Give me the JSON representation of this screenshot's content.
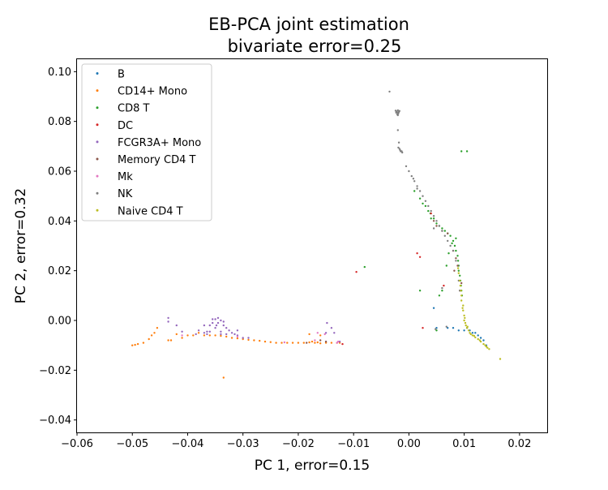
{
  "chart_data": {
    "type": "scatter",
    "title": "EB-PCA joint estimation",
    "subtitle": "bivariate error=0.25",
    "xlabel": "PC 1, error=0.15",
    "ylabel": "PC 2, error=0.32",
    "xlim": [
      -0.06,
      0.025
    ],
    "ylim": [
      -0.045,
      0.105
    ],
    "x_ticks": [
      -0.06,
      -0.05,
      -0.04,
      -0.03,
      -0.02,
      -0.01,
      0.0,
      0.01,
      0.02
    ],
    "x_tick_labels": [
      "−0.06",
      "−0.05",
      "−0.04",
      "−0.03",
      "−0.02",
      "−0.01",
      "0.00",
      "0.01",
      "0.02"
    ],
    "y_ticks": [
      -0.04,
      -0.02,
      0.0,
      0.02,
      0.04,
      0.06,
      0.08,
      0.1
    ],
    "y_tick_labels": [
      "−0.04",
      "−0.02",
      "0.00",
      "0.02",
      "0.04",
      "0.06",
      "0.08",
      "0.10"
    ],
    "grid": false,
    "legend_position": "upper-left",
    "series": [
      {
        "name": "B",
        "color": "#1f77b4",
        "points": [
          [
            0.005,
            -0.003
          ],
          [
            0.007,
            -0.003
          ],
          [
            0.008,
            -0.003
          ],
          [
            0.009,
            -0.004
          ],
          [
            0.01,
            -0.004
          ],
          [
            0.011,
            -0.004
          ],
          [
            0.0115,
            -0.005
          ],
          [
            0.012,
            -0.005
          ],
          [
            0.0125,
            -0.006
          ],
          [
            0.013,
            -0.007
          ],
          [
            0.0135,
            -0.008
          ],
          [
            0.014,
            -0.01
          ],
          [
            0.0045,
            0.005
          ],
          [
            0.0105,
            -0.003
          ]
        ]
      },
      {
        "name": "CD14+ Mono",
        "color": "#ff7f0e",
        "points": [
          [
            -0.05,
            -0.01
          ],
          [
            -0.0495,
            -0.0098
          ],
          [
            -0.049,
            -0.0095
          ],
          [
            -0.048,
            -0.009
          ],
          [
            -0.047,
            -0.0075
          ],
          [
            -0.0465,
            -0.006
          ],
          [
            -0.046,
            -0.005
          ],
          [
            -0.0455,
            -0.003
          ],
          [
            -0.0435,
            -0.008
          ],
          [
            -0.043,
            -0.008
          ],
          [
            -0.042,
            -0.0055
          ],
          [
            -0.041,
            -0.007
          ],
          [
            -0.04,
            -0.006
          ],
          [
            -0.039,
            -0.006
          ],
          [
            -0.038,
            -0.005
          ],
          [
            -0.037,
            -0.006
          ],
          [
            -0.036,
            -0.006
          ],
          [
            -0.035,
            -0.006
          ],
          [
            -0.034,
            -0.0062
          ],
          [
            -0.033,
            -0.0065
          ],
          [
            -0.032,
            -0.007
          ],
          [
            -0.031,
            -0.0072
          ],
          [
            -0.03,
            -0.0075
          ],
          [
            -0.029,
            -0.0078
          ],
          [
            -0.028,
            -0.008
          ],
          [
            -0.027,
            -0.0082
          ],
          [
            -0.026,
            -0.0085
          ],
          [
            -0.025,
            -0.0087
          ],
          [
            -0.024,
            -0.009
          ],
          [
            -0.023,
            -0.009
          ],
          [
            -0.022,
            -0.009
          ],
          [
            -0.021,
            -0.009
          ],
          [
            -0.02,
            -0.009
          ],
          [
            -0.019,
            -0.009
          ],
          [
            -0.018,
            -0.0088
          ],
          [
            -0.017,
            -0.009
          ],
          [
            -0.016,
            -0.0092
          ],
          [
            -0.015,
            -0.009
          ],
          [
            -0.014,
            -0.009
          ],
          [
            -0.013,
            -0.009
          ],
          [
            -0.0125,
            -0.009
          ],
          [
            -0.016,
            -0.006
          ],
          [
            -0.018,
            -0.0055
          ],
          [
            -0.0335,
            -0.023
          ],
          [
            -0.0175,
            -0.0085
          ],
          [
            -0.0165,
            -0.0088
          ]
        ]
      },
      {
        "name": "CD8 T",
        "color": "#2ca02c",
        "points": [
          [
            -0.008,
            0.0215
          ],
          [
            0.002,
            0.012
          ],
          [
            0.0095,
            0.068
          ],
          [
            0.0105,
            0.068
          ],
          [
            0.001,
            0.052
          ],
          [
            0.002,
            0.049
          ],
          [
            0.003,
            0.046
          ],
          [
            0.0035,
            0.044
          ],
          [
            0.004,
            0.041
          ],
          [
            0.005,
            0.039
          ],
          [
            0.0055,
            0.038
          ],
          [
            0.006,
            0.037
          ],
          [
            0.0065,
            0.036
          ],
          [
            0.007,
            0.035
          ],
          [
            0.0075,
            0.034
          ],
          [
            0.008,
            0.032
          ],
          [
            0.0083,
            0.03
          ],
          [
            0.0085,
            0.028
          ],
          [
            0.0088,
            0.026
          ],
          [
            0.0089,
            0.024
          ],
          [
            0.009,
            0.022
          ],
          [
            0.009,
            0.02
          ],
          [
            0.0092,
            0.018
          ],
          [
            0.0093,
            0.016
          ],
          [
            0.0094,
            0.014
          ],
          [
            0.0095,
            0.012
          ],
          [
            0.0096,
            0.01
          ],
          [
            0.0072,
            0.027
          ],
          [
            0.0068,
            0.022
          ],
          [
            0.006,
            0.012
          ],
          [
            0.0055,
            0.01
          ],
          [
            0.005,
            -0.004
          ],
          [
            0.0045,
            0.041
          ],
          [
            0.0039,
            0.043
          ],
          [
            0.0025,
            0.047
          ],
          [
            0.0085,
            0.033
          ],
          [
            0.0078,
            0.031
          ]
        ]
      },
      {
        "name": "DC",
        "color": "#d62728",
        "points": [
          [
            -0.0095,
            0.0195
          ],
          [
            0.0015,
            0.027
          ],
          [
            0.002,
            0.0255
          ],
          [
            0.0025,
            -0.003
          ],
          [
            0.0063,
            0.014
          ],
          [
            0.008,
            0.028
          ],
          [
            0.004,
            0.043
          ],
          [
            -0.012,
            -0.0095
          ]
        ]
      },
      {
        "name": "FCGR3A+ Mono",
        "color": "#9467bd",
        "points": [
          [
            -0.0435,
            0.001
          ],
          [
            -0.0435,
            -0.0005
          ],
          [
            -0.042,
            -0.002
          ],
          [
            -0.041,
            -0.0045
          ],
          [
            -0.038,
            -0.004
          ],
          [
            -0.037,
            -0.002
          ],
          [
            -0.0365,
            -0.0045
          ],
          [
            -0.036,
            -0.002
          ],
          [
            -0.0355,
            -0.001
          ],
          [
            -0.035,
            0.0005
          ],
          [
            -0.035,
            -0.003
          ],
          [
            -0.0345,
            -0.001
          ],
          [
            -0.034,
            0.0
          ],
          [
            -0.034,
            -0.0045
          ],
          [
            -0.0335,
            -0.002
          ],
          [
            -0.033,
            -0.003
          ],
          [
            -0.0325,
            -0.004
          ],
          [
            -0.032,
            -0.005
          ],
          [
            -0.0315,
            -0.0055
          ],
          [
            -0.031,
            -0.006
          ],
          [
            -0.03,
            -0.007
          ],
          [
            -0.029,
            -0.007
          ],
          [
            -0.0355,
            0.0005
          ],
          [
            -0.0345,
            0.001
          ],
          [
            -0.0335,
            -0.0005
          ],
          [
            -0.036,
            -0.0045
          ],
          [
            -0.037,
            -0.005
          ],
          [
            -0.0385,
            -0.0055
          ],
          [
            -0.034,
            -0.0055
          ],
          [
            -0.033,
            -0.0055
          ],
          [
            -0.0148,
            -0.001
          ],
          [
            -0.014,
            -0.003
          ],
          [
            -0.0135,
            -0.005
          ],
          [
            -0.015,
            -0.005
          ],
          [
            -0.0125,
            -0.0085
          ],
          [
            -0.031,
            -0.004
          ],
          [
            -0.0365,
            -0.0055
          ],
          [
            -0.0348,
            -0.002
          ]
        ]
      },
      {
        "name": "Memory CD4 T",
        "color": "#8c564b",
        "points": [
          [
            0.005,
            0.038
          ],
          [
            0.006,
            0.036
          ],
          [
            0.007,
            0.035
          ],
          [
            0.0085,
            0.025
          ],
          [
            0.0088,
            0.022
          ],
          [
            0.0095,
            0.015
          ],
          [
            0.0092,
            0.012
          ],
          [
            0.0082,
            0.02
          ],
          [
            0.0045,
            0.04
          ],
          [
            -0.015,
            -0.0085
          ],
          [
            -0.0185,
            -0.009
          ],
          [
            -0.016,
            -0.008
          ]
        ]
      },
      {
        "name": "Mk",
        "color": "#e377c2",
        "points": [
          [
            -0.0165,
            -0.005
          ],
          [
            -0.0152,
            -0.0055
          ],
          [
            -0.017,
            -0.008
          ],
          [
            -0.0128,
            -0.0085
          ],
          [
            -0.041,
            -0.006
          ],
          [
            -0.031,
            -0.0065
          ],
          [
            -0.0225,
            -0.0088
          ],
          [
            -0.013,
            -0.009
          ]
        ]
      },
      {
        "name": "NK",
        "color": "#7f7f7f",
        "points": [
          [
            -0.0035,
            0.092
          ],
          [
            -0.002,
            0.0845
          ],
          [
            -0.0022,
            0.084
          ],
          [
            -0.0018,
            0.0838
          ],
          [
            -0.0023,
            0.0835
          ],
          [
            -0.0019,
            0.0832
          ],
          [
            -0.0021,
            0.0828
          ],
          [
            -0.002,
            0.0825
          ],
          [
            -0.0017,
            0.0842
          ],
          [
            -0.0024,
            0.0843
          ],
          [
            -0.0021,
            0.0836
          ],
          [
            -0.002,
            0.0765
          ],
          [
            -0.0018,
            0.0715
          ],
          [
            -0.0019,
            0.0695
          ],
          [
            -0.0017,
            0.069
          ],
          [
            -0.0016,
            0.0685
          ],
          [
            -0.0015,
            0.068
          ],
          [
            -0.0012,
            0.0675
          ],
          [
            -0.0013,
            0.068
          ],
          [
            -0.0005,
            0.062
          ],
          [
            0.0,
            0.06
          ],
          [
            0.0005,
            0.058
          ],
          [
            0.001,
            0.056
          ],
          [
            0.0015,
            0.054
          ],
          [
            0.002,
            0.052
          ],
          [
            0.0025,
            0.05
          ],
          [
            0.003,
            0.048
          ],
          [
            0.0035,
            0.046
          ],
          [
            0.004,
            0.044
          ],
          [
            0.0045,
            0.042
          ],
          [
            0.005,
            0.04
          ],
          [
            0.0055,
            0.038
          ],
          [
            0.006,
            0.036
          ],
          [
            0.0065,
            0.034
          ],
          [
            0.007,
            0.032
          ],
          [
            0.008,
            0.028
          ],
          [
            0.0085,
            0.024
          ],
          [
            0.009,
            0.016
          ],
          [
            0.0092,
            0.012
          ],
          [
            0.0075,
            0.03
          ],
          [
            0.0045,
            0.037
          ],
          [
            0.006,
            0.013
          ],
          [
            0.0048,
            -0.0035
          ],
          [
            0.0068,
            -0.0025
          ],
          [
            0.0015,
            0.053
          ],
          [
            0.0008,
            0.057
          ]
        ]
      },
      {
        "name": "Naive CD4 T",
        "color": "#bcbd22",
        "points": [
          [
            0.0095,
            0.01
          ],
          [
            0.0095,
            0.008
          ],
          [
            0.0098,
            0.006
          ],
          [
            0.0098,
            0.004
          ],
          [
            0.01,
            0.002
          ],
          [
            0.01,
            0.0
          ],
          [
            0.0102,
            -0.001
          ],
          [
            0.0103,
            -0.002
          ],
          [
            0.0105,
            -0.003
          ],
          [
            0.0108,
            -0.004
          ],
          [
            0.011,
            -0.005
          ],
          [
            0.0115,
            -0.006
          ],
          [
            0.012,
            -0.0068
          ],
          [
            0.0125,
            -0.0075
          ],
          [
            0.013,
            -0.0085
          ],
          [
            0.0135,
            -0.0095
          ],
          [
            0.014,
            -0.0105
          ],
          [
            0.0145,
            -0.0115
          ],
          [
            0.0165,
            -0.0155
          ],
          [
            0.0093,
            0.014
          ],
          [
            0.0094,
            0.012
          ],
          [
            0.0092,
            0.016
          ],
          [
            0.009,
            0.019
          ],
          [
            0.0089,
            0.021
          ],
          [
            0.0097,
            0.005
          ],
          [
            0.0101,
            0.001
          ],
          [
            0.0106,
            -0.0025
          ],
          [
            0.0112,
            -0.0055
          ],
          [
            0.0118,
            -0.0062
          ],
          [
            0.0128,
            -0.008
          ],
          [
            0.0138,
            -0.01
          ],
          [
            0.0142,
            -0.011
          ]
        ]
      }
    ]
  }
}
